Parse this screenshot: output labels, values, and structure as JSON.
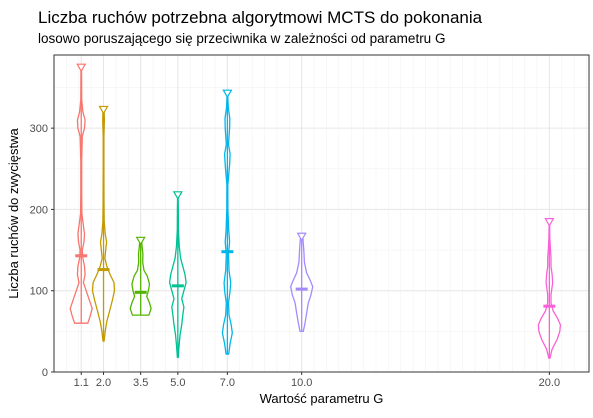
{
  "chart_data": {
    "type": "violin",
    "title": "Liczba ruchów potrzebna algorytmowi MCTS do pokonania",
    "subtitle": "losowo poruszającego się przeciwnika w zależności od parametru G",
    "xlabel": "Wartość parametru G",
    "ylabel": "Liczba ruchów do zwycięstwa",
    "xlim": [
      0,
      21.6
    ],
    "ylim": [
      0,
      390
    ],
    "x_ticks": [
      {
        "value": 1.1,
        "label": "1.1"
      },
      {
        "value": 2.0,
        "label": "2.0"
      },
      {
        "value": 3.5,
        "label": "3.5"
      },
      {
        "value": 5.0,
        "label": "5.0"
      },
      {
        "value": 7.0,
        "label": "7.0"
      },
      {
        "value": 10.0,
        "label": "10.0"
      },
      {
        "value": 20.0,
        "label": "20.0"
      }
    ],
    "y_ticks": [
      0,
      100,
      200,
      300
    ],
    "grid": true,
    "legend": "none",
    "violins": [
      {
        "g": 1.1,
        "color": "#F8766D",
        "min": 60,
        "max": 375,
        "marker": 143,
        "density": [
          [
            60,
            0.6
          ],
          [
            68,
            0.8
          ],
          [
            78,
            1.0
          ],
          [
            90,
            0.7
          ],
          [
            100,
            0.45
          ],
          [
            110,
            0.2
          ],
          [
            120,
            0.35
          ],
          [
            130,
            0.3
          ],
          [
            140,
            0.15
          ],
          [
            150,
            0.1
          ],
          [
            160,
            0.25
          ],
          [
            170,
            0.3
          ],
          [
            180,
            0.2
          ],
          [
            195,
            0.06
          ],
          [
            220,
            0.04
          ],
          [
            260,
            0.04
          ],
          [
            290,
            0.1
          ],
          [
            300,
            0.3
          ],
          [
            310,
            0.35
          ],
          [
            320,
            0.15
          ],
          [
            335,
            0.04
          ],
          [
            360,
            0.03
          ],
          [
            375,
            0.02
          ]
        ]
      },
      {
        "g": 2.0,
        "color": "#C49A00",
        "min": 38,
        "max": 323,
        "marker": 126,
        "density": [
          [
            38,
            0.05
          ],
          [
            50,
            0.15
          ],
          [
            62,
            0.3
          ],
          [
            75,
            0.55
          ],
          [
            88,
            0.8
          ],
          [
            100,
            1.0
          ],
          [
            110,
            0.95
          ],
          [
            120,
            0.6
          ],
          [
            130,
            0.3
          ],
          [
            140,
            0.12
          ],
          [
            150,
            0.2
          ],
          [
            160,
            0.28
          ],
          [
            170,
            0.15
          ],
          [
            185,
            0.06
          ],
          [
            210,
            0.04
          ],
          [
            250,
            0.03
          ],
          [
            290,
            0.03
          ],
          [
            310,
            0.08
          ],
          [
            323,
            0.04
          ]
        ]
      },
      {
        "g": 3.5,
        "color": "#53B400",
        "min": 70,
        "max": 162,
        "marker": 98,
        "density": [
          [
            70,
            0.75
          ],
          [
            78,
            0.95
          ],
          [
            85,
            0.8
          ],
          [
            93,
            0.55
          ],
          [
            100,
            0.7
          ],
          [
            108,
            0.8
          ],
          [
            118,
            0.6
          ],
          [
            125,
            0.3
          ],
          [
            135,
            0.18
          ],
          [
            145,
            0.2
          ],
          [
            155,
            0.12
          ],
          [
            162,
            0.08
          ]
        ]
      },
      {
        "g": 5.0,
        "color": "#00C094",
        "min": 18,
        "max": 218,
        "marker": 106,
        "density": [
          [
            18,
            0.04
          ],
          [
            30,
            0.1
          ],
          [
            45,
            0.2
          ],
          [
            58,
            0.35
          ],
          [
            70,
            0.45
          ],
          [
            80,
            0.55
          ],
          [
            90,
            0.35
          ],
          [
            100,
            0.55
          ],
          [
            110,
            0.75
          ],
          [
            120,
            0.65
          ],
          [
            130,
            0.45
          ],
          [
            140,
            0.25
          ],
          [
            155,
            0.12
          ],
          [
            175,
            0.05
          ],
          [
            200,
            0.04
          ],
          [
            218,
            0.02
          ]
        ]
      },
      {
        "g": 7.0,
        "color": "#00B6EB",
        "min": 22,
        "max": 343,
        "marker": 148,
        "density": [
          [
            22,
            0.12
          ],
          [
            35,
            0.25
          ],
          [
            48,
            0.45
          ],
          [
            58,
            0.35
          ],
          [
            70,
            0.15
          ],
          [
            85,
            0.1
          ],
          [
            100,
            0.25
          ],
          [
            110,
            0.3
          ],
          [
            125,
            0.15
          ],
          [
            145,
            0.1
          ],
          [
            160,
            0.2
          ],
          [
            175,
            0.12
          ],
          [
            200,
            0.05
          ],
          [
            230,
            0.04
          ],
          [
            255,
            0.2
          ],
          [
            268,
            0.25
          ],
          [
            280,
            0.1
          ],
          [
            300,
            0.2
          ],
          [
            312,
            0.22
          ],
          [
            325,
            0.08
          ],
          [
            343,
            0.02
          ]
        ]
      },
      {
        "g": 10.0,
        "color": "#A58AFF",
        "min": 50,
        "max": 167,
        "marker": 102,
        "density": [
          [
            50,
            0.15
          ],
          [
            60,
            0.3
          ],
          [
            72,
            0.45
          ],
          [
            85,
            0.6
          ],
          [
            95,
            0.85
          ],
          [
            105,
            1.0
          ],
          [
            112,
            0.8
          ],
          [
            122,
            0.45
          ],
          [
            135,
            0.25
          ],
          [
            148,
            0.2
          ],
          [
            158,
            0.15
          ],
          [
            167,
            0.1
          ]
        ]
      },
      {
        "g": 20.0,
        "color": "#FB61D7",
        "min": 17,
        "max": 185,
        "marker": 81,
        "density": [
          [
            17,
            0.05
          ],
          [
            28,
            0.25
          ],
          [
            40,
            0.7
          ],
          [
            50,
            0.95
          ],
          [
            58,
            1.0
          ],
          [
            66,
            0.75
          ],
          [
            75,
            0.35
          ],
          [
            85,
            0.15
          ],
          [
            95,
            0.15
          ],
          [
            110,
            0.3
          ],
          [
            120,
            0.25
          ],
          [
            130,
            0.15
          ],
          [
            140,
            0.15
          ],
          [
            150,
            0.1
          ],
          [
            165,
            0.04
          ],
          [
            185,
            0.02
          ]
        ]
      }
    ]
  }
}
